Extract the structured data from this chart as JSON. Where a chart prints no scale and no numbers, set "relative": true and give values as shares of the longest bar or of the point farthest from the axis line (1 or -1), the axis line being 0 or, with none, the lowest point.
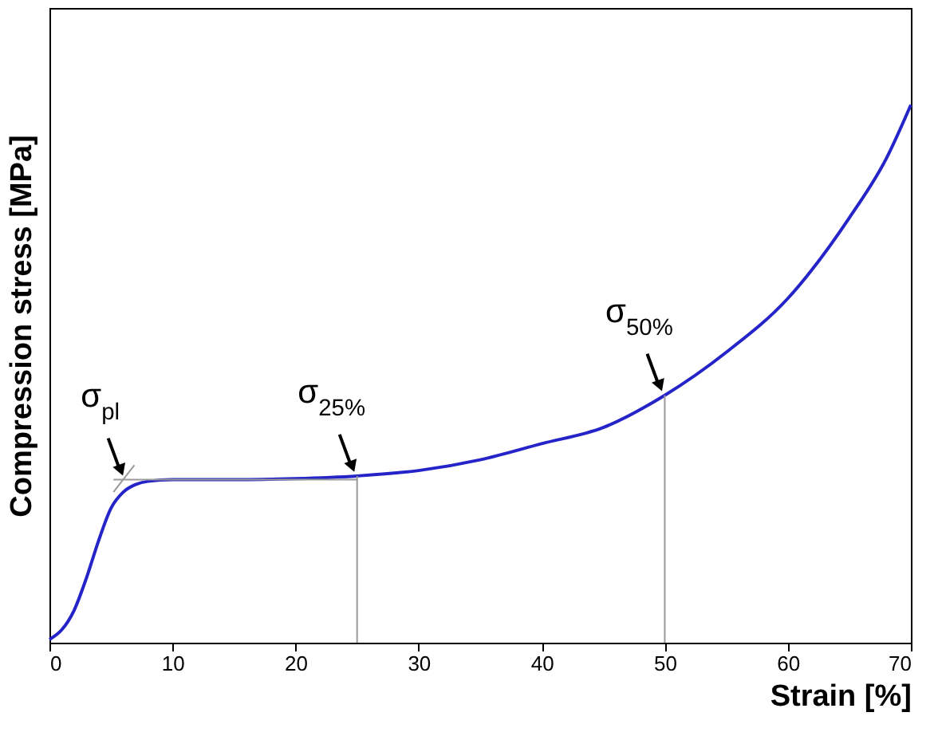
{
  "chart_data": {
    "type": "line",
    "relative": true,
    "xlabel": "Strain [%]",
    "ylabel": "Compression stress [MPa]",
    "xlim": [
      0,
      70
    ],
    "xticks": [
      0,
      10,
      20,
      30,
      40,
      50,
      60,
      70
    ],
    "series": [
      {
        "color": "#2424c8",
        "x": [
          0,
          1,
          2,
          3,
          4,
          5,
          6,
          7,
          8,
          10,
          15,
          20,
          25,
          30,
          35,
          40,
          45,
          50,
          55,
          60,
          65,
          68,
          70
        ],
        "values": [
          0.006,
          0.024,
          0.06,
          0.12,
          0.19,
          0.25,
          0.28,
          0.294,
          0.3,
          0.303,
          0.303,
          0.305,
          0.31,
          0.32,
          0.34,
          0.37,
          0.4,
          0.46,
          0.54,
          0.64,
          0.79,
          0.9,
          1
        ]
      },
      {
        "color": "#999999",
        "x": [
          5.2,
          25
        ],
        "values": [
          0.303,
          0.303
        ]
      },
      {
        "color": "#999999",
        "x": [
          5.2,
          6.9
        ],
        "values": [
          0.28,
          0.33
        ]
      },
      {
        "color": "#999999",
        "x": [
          25,
          25
        ],
        "values": [
          0,
          0.31
        ]
      },
      {
        "color": "#999999",
        "x": [
          50,
          50
        ],
        "values": [
          0,
          0.46
        ]
      }
    ],
    "annotations": [
      {
        "text": "σ$_{pl}$",
        "x": 6.2,
        "y": 0.303
      },
      {
        "text": "σ$_{25%}$",
        "x": 25,
        "y": 0.31
      },
      {
        "text": "σ$_{50%}$",
        "x": 50,
        "y": 0.46
      }
    ],
    "marker": "none",
    "line_style": "solid"
  }
}
